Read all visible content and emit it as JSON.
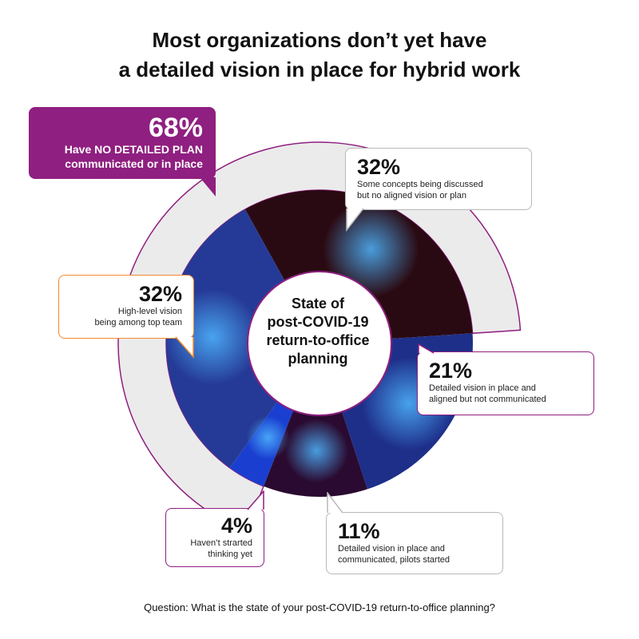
{
  "title_lines": [
    "Most organizations don’t yet have",
    "a detailed vision in place for hybrid work"
  ],
  "center_label_lines": [
    "State of",
    "post-COVID-19",
    "return-to-office",
    "planning"
  ],
  "question": "Question: What is the state of your post-COVID-19 return-to-office planning?",
  "highlight": {
    "value": "68%",
    "lines": [
      "Have NO DETAILED PLAN",
      "communicated or in place"
    ],
    "color": "#8f1f80"
  },
  "callouts": [
    {
      "value": "32%",
      "lines": [
        "Some concepts being discussed",
        "but no aligned vision or plan"
      ],
      "border": "#b9b9b9"
    },
    {
      "value": "21%",
      "lines": [
        "Detailed vision in place and",
        "aligned but not communicated"
      ],
      "border": "#8f1f80"
    },
    {
      "value": "11%",
      "lines": [
        "Detailed vision in place and",
        "communicated, pilots started"
      ],
      "border": "#b9b9b9"
    },
    {
      "value": "4%",
      "lines": [
        "Haven’t strarted",
        "thinking yet"
      ],
      "border": "#8f1f80"
    },
    {
      "value": "32%",
      "lines": [
        "High-level vision",
        "being among top team"
      ],
      "border": "#f28a2e"
    }
  ],
  "chart_data": {
    "type": "pie",
    "categories": [
      "Some concepts being discussed but no aligned vision or plan",
      "Detailed vision in place and aligned but not communicated",
      "Detailed vision in place and communicated, pilots started",
      "Haven’t strarted thinking yet",
      "High-level vision being among top team"
    ],
    "values": [
      32,
      21,
      11,
      4,
      32
    ],
    "highlight_group": {
      "label": "Have NO DETAILED PLAN communicated or in place",
      "value": 68,
      "includes": [
        0,
        3,
        4
      ]
    },
    "colors": [
      "#2a0a12",
      "#1e2f8a",
      "#2a0a30",
      "#1a3fd0",
      "#253a96"
    ]
  }
}
